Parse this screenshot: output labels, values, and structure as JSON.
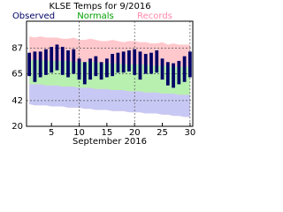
{
  "chart_data": {
    "type": "range",
    "title": "KLSE Temps for 9/2016",
    "x_label": "September 2016",
    "x": [
      1,
      2,
      3,
      4,
      5,
      6,
      7,
      8,
      9,
      10,
      11,
      12,
      13,
      14,
      15,
      16,
      17,
      18,
      19,
      20,
      21,
      22,
      23,
      24,
      25,
      26,
      27,
      28,
      29,
      30
    ],
    "xlim": [
      0.5,
      30.5
    ],
    "xticks": [
      5,
      10,
      15,
      20,
      25,
      30
    ],
    "ylim": [
      20,
      110
    ],
    "yticks": [
      20,
      42,
      65,
      87
    ],
    "grid": true,
    "series": [
      {
        "name": "Observed",
        "color": "#000066",
        "high": [
          83,
          84,
          84,
          86,
          88,
          90,
          88,
          85,
          86,
          78,
          75,
          78,
          80,
          75,
          78,
          82,
          83,
          84,
          85,
          86,
          84,
          82,
          83,
          85,
          78,
          75,
          74,
          76,
          80,
          84
        ],
        "low": [
          63,
          58,
          62,
          64,
          66,
          68,
          64,
          62,
          65,
          60,
          56,
          60,
          63,
          60,
          62,
          63,
          66,
          66,
          67,
          64,
          60,
          65,
          65,
          66,
          60,
          55,
          53,
          56,
          58,
          62
        ]
      },
      {
        "name": "Normals",
        "color": "#b8f0b0",
        "high": [
          77,
          77,
          77,
          76,
          76,
          76,
          76,
          76,
          75,
          75,
          75,
          75,
          75,
          74,
          74,
          74,
          74,
          73,
          73,
          73,
          73,
          73,
          72,
          72,
          72,
          72,
          71,
          71,
          71,
          71
        ],
        "low": [
          56,
          56,
          56,
          55,
          55,
          55,
          54,
          54,
          54,
          53,
          53,
          53,
          52,
          52,
          52,
          51,
          51,
          51,
          50,
          50,
          50,
          49,
          49,
          49,
          48,
          48,
          48,
          47,
          47,
          47
        ]
      },
      {
        "name": "Records",
        "color": "#ffc8cc",
        "low_color": "#c8c8f4",
        "high": [
          97,
          96,
          97,
          96,
          96,
          96,
          95,
          95,
          96,
          94,
          94,
          95,
          94,
          93,
          93,
          94,
          93,
          92,
          93,
          93,
          92,
          92,
          91,
          91,
          92,
          90,
          91,
          90,
          90,
          90
        ],
        "low": [
          39,
          38,
          38,
          38,
          37,
          37,
          37,
          36,
          36,
          36,
          35,
          35,
          34,
          34,
          34,
          33,
          33,
          33,
          32,
          32,
          32,
          31,
          31,
          31,
          30,
          30,
          29,
          29,
          28,
          28
        ]
      }
    ]
  }
}
